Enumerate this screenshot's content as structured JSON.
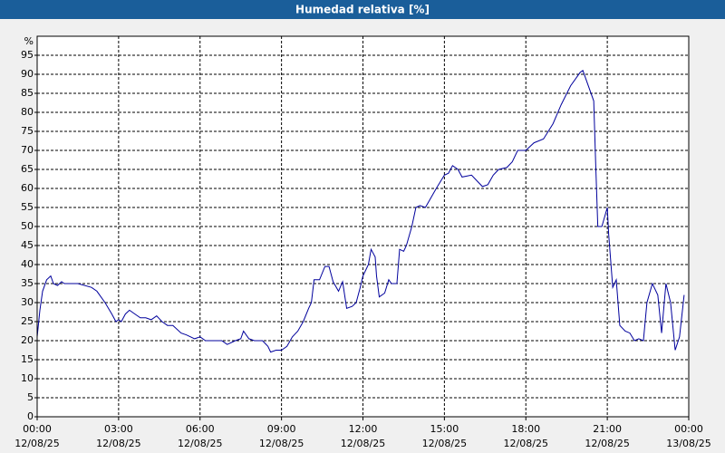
{
  "chart_data": {
    "type": "line",
    "title": "Humedad relativa [%]",
    "y_label": "%",
    "color": "#00009c",
    "grid": true,
    "xlim": [
      0,
      24
    ],
    "xticks": [
      {
        "value": 0,
        "label": "00:00"
      },
      {
        "value": 3,
        "label": "03:00"
      },
      {
        "value": 6,
        "label": "06:00"
      },
      {
        "value": 9,
        "label": "09:00"
      },
      {
        "value": 12,
        "label": "12:00"
      },
      {
        "value": 15,
        "label": "15:00"
      },
      {
        "value": 18,
        "label": "18:00"
      },
      {
        "value": 21,
        "label": "21:00"
      },
      {
        "value": 24,
        "label": "00:00"
      }
    ],
    "xtick_dates": [
      "12/08/25",
      "12/08/25",
      "12/08/25",
      "12/08/25",
      "12/08/25",
      "12/08/25",
      "12/08/25",
      "12/08/25",
      "13/08/25"
    ],
    "ylim": [
      0,
      100
    ],
    "yticks": [
      0,
      5,
      10,
      15,
      20,
      25,
      30,
      35,
      40,
      45,
      50,
      55,
      60,
      65,
      70,
      75,
      80,
      85,
      90,
      95
    ],
    "x": [
      0,
      0.1,
      0.2,
      0.35,
      0.5,
      0.6,
      0.75,
      0.9,
      1.0,
      1.5,
      2.0,
      2.2,
      2.5,
      2.75,
      2.9,
      3.0,
      3.1,
      3.25,
      3.4,
      3.6,
      3.8,
      4.0,
      4.2,
      4.4,
      4.6,
      4.8,
      5.0,
      5.3,
      5.5,
      5.8,
      6.0,
      6.2,
      6.5,
      6.8,
      7.0,
      7.3,
      7.5,
      7.6,
      7.8,
      8.0,
      8.3,
      8.5,
      8.6,
      8.8,
      9.0,
      9.2,
      9.4,
      9.6,
      9.8,
      10.0,
      10.1,
      10.2,
      10.4,
      10.6,
      10.75,
      10.9,
      11.1,
      11.25,
      11.4,
      11.6,
      11.75,
      11.9,
      12.0,
      12.2,
      12.3,
      12.45,
      12.5,
      12.6,
      12.8,
      12.95,
      13.05,
      13.25,
      13.35,
      13.5,
      13.6,
      13.8,
      13.95,
      14.1,
      14.3,
      14.5,
      14.7,
      15.0,
      15.15,
      15.3,
      15.5,
      15.65,
      16.0,
      16.2,
      16.4,
      16.6,
      16.8,
      17.0,
      17.3,
      17.5,
      17.7,
      18.0,
      18.3,
      18.65,
      19.0,
      19.3,
      19.65,
      20.0,
      20.1,
      20.5,
      20.57,
      20.65,
      20.8,
      21.0,
      21.05,
      21.2,
      21.33,
      21.46,
      21.66,
      21.83,
      22.0,
      22.16,
      22.33,
      22.46,
      22.66,
      22.86,
      23.0,
      23.16,
      23.33,
      23.5,
      23.66,
      23.83
    ],
    "values": [
      21,
      28,
      33,
      36,
      37,
      35,
      34.5,
      35.5,
      35,
      35,
      34,
      33,
      30,
      27,
      25,
      25.5,
      25,
      27,
      28,
      27,
      26,
      26,
      25.5,
      26.5,
      25,
      24,
      24,
      22,
      21.5,
      20.5,
      21,
      20,
      20,
      20,
      19,
      20,
      20.5,
      22.5,
      20.5,
      20,
      20,
      18.5,
      17,
      17.5,
      17.5,
      18.5,
      21,
      22.5,
      25,
      28.5,
      30,
      36,
      36,
      39.5,
      39.5,
      35.5,
      33,
      35.5,
      28.5,
      29,
      30,
      34,
      37,
      40,
      44,
      42,
      37,
      31.5,
      32.5,
      36,
      35,
      35,
      44,
      43.5,
      45,
      50,
      55,
      55.5,
      55,
      57.5,
      60,
      63.5,
      64,
      66,
      65,
      63,
      63.5,
      62,
      60.5,
      61,
      63.5,
      65,
      65.5,
      67,
      70,
      70,
      72,
      73,
      77,
      82,
      87,
      90.5,
      91,
      83,
      67,
      50,
      50,
      55,
      48,
      34,
      36,
      24,
      22.5,
      22,
      20,
      20.5,
      20,
      30,
      35,
      32,
      22,
      35,
      30,
      17.5,
      21,
      32
    ]
  }
}
